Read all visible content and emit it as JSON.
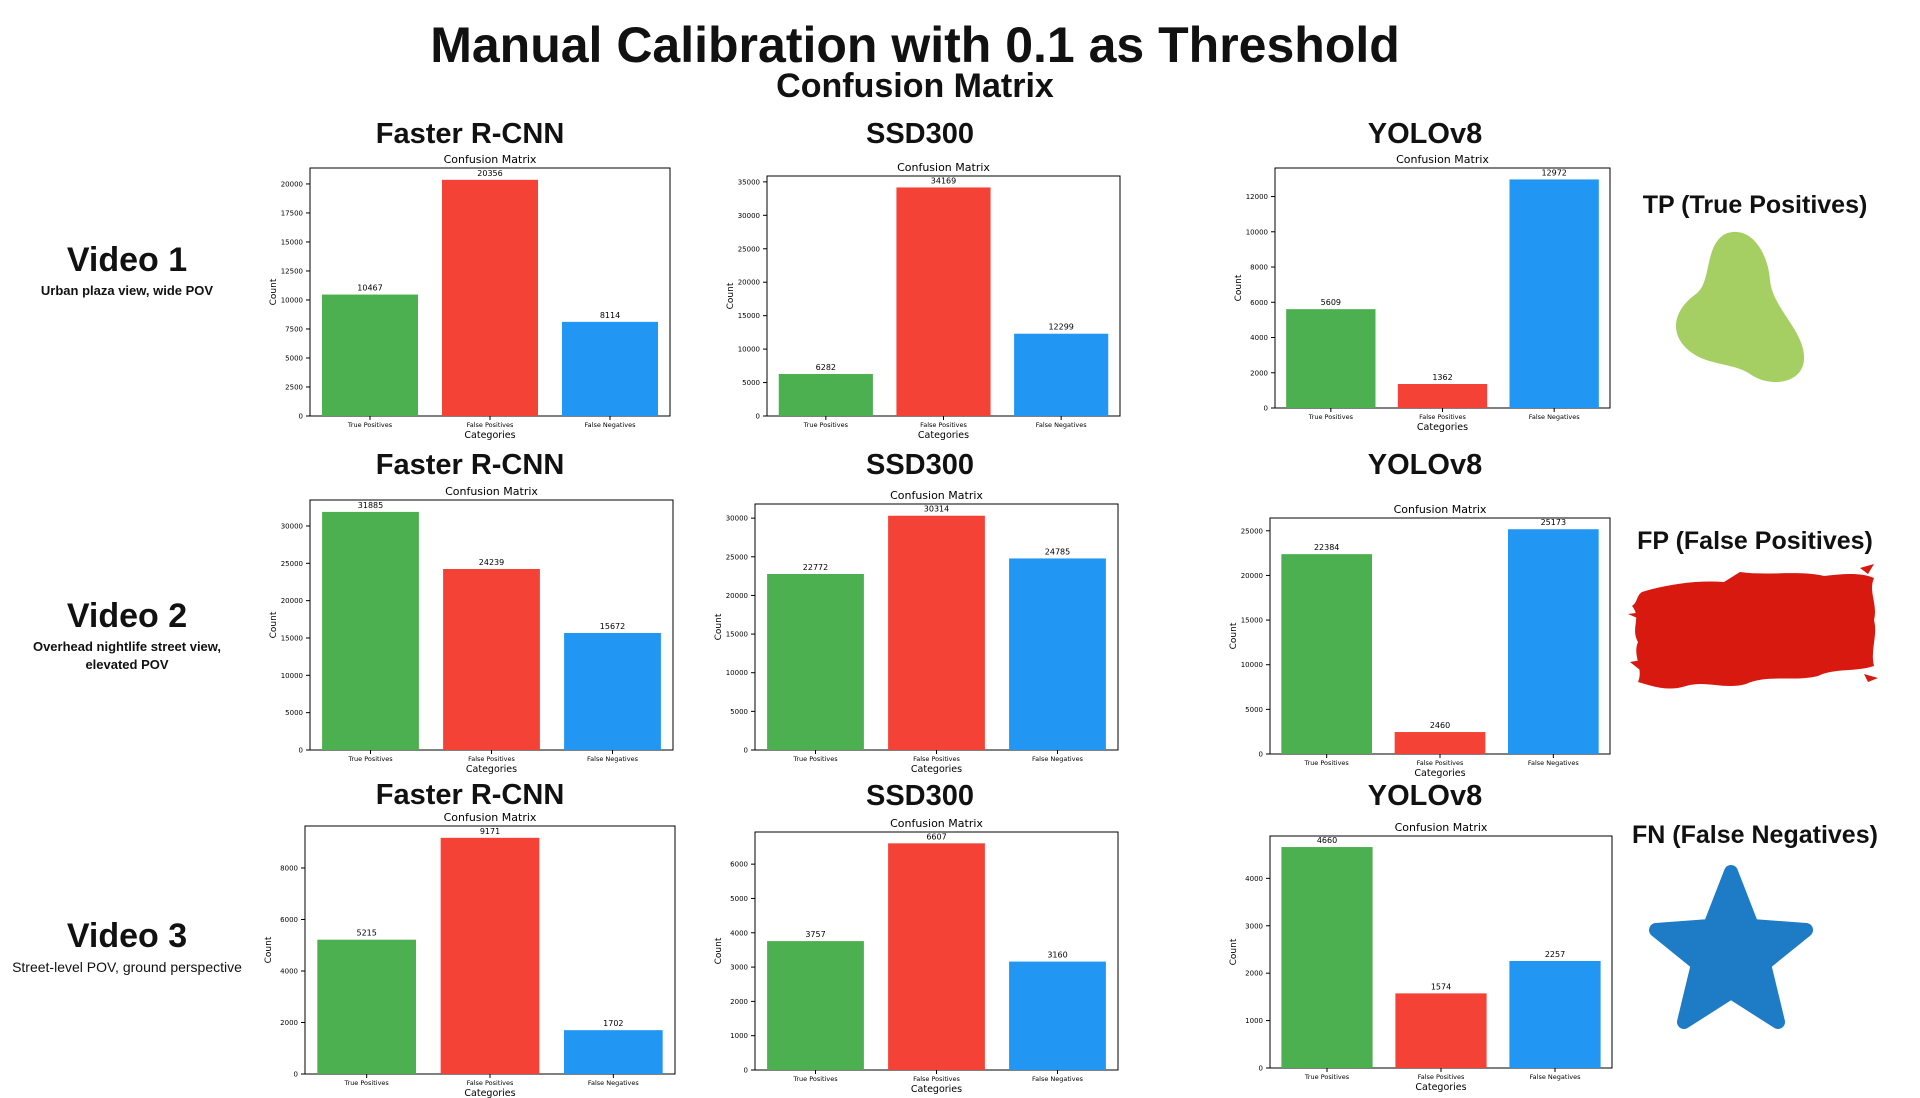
{
  "title": "Manual Calibration with 0.1 as Threshold",
  "subtitle": "Confusion Matrix",
  "colors": {
    "true_positives": "#4CAF50",
    "false_positives": "#F44336",
    "false_negatives": "#2196F3",
    "fp_swatch": "#D7190F",
    "tp_swatch": "#A5CF63",
    "fn_swatch": "#1E7BC6"
  },
  "rows": [
    {
      "title": "Video 1",
      "description": "Urban plaza view, wide  POV"
    },
    {
      "title": "Video 2",
      "description": "Overhead nightlife street view, elevated POV"
    },
    {
      "title": "Video 3",
      "description": "Street-level POV, ground perspective"
    }
  ],
  "models": [
    {
      "title": "Faster R-CNN"
    },
    {
      "title": "SSD300"
    },
    {
      "title": "YOLOv8"
    }
  ],
  "legend": [
    {
      "label": "TP (True Positives)",
      "icon": "green-blob-icon"
    },
    {
      "label": "FP (False Positives)",
      "icon": "red-brush-stroke-icon"
    },
    {
      "label": "FN (False Negatives)",
      "icon": "blue-star-icon"
    }
  ],
  "chart_data": [
    {
      "type": "bar",
      "video": "Video 1",
      "model": "Faster R-CNN",
      "title": "Confusion Matrix",
      "xlabel": "Categories",
      "ylabel": "Count",
      "categories": [
        "True Positives",
        "False Positives",
        "False Negatives"
      ],
      "values": [
        10467,
        20356,
        8114
      ],
      "ylim": [
        0,
        21374
      ],
      "yticks": [
        0,
        2500,
        5000,
        7500,
        10000,
        12500,
        15000,
        17500,
        20000
      ],
      "grid": false
    },
    {
      "type": "bar",
      "video": "Video 1",
      "model": "SSD300",
      "title": "Confusion Matrix",
      "xlabel": "Categories",
      "ylabel": "Count",
      "categories": [
        "True Positives",
        "False Positives",
        "False Negatives"
      ],
      "values": [
        6282,
        34169,
        12299
      ],
      "ylim": [
        0,
        35877
      ],
      "yticks": [
        0,
        5000,
        10000,
        15000,
        20000,
        25000,
        30000,
        35000
      ],
      "grid": false
    },
    {
      "type": "bar",
      "video": "Video 1",
      "model": "YOLOv8",
      "title": "Confusion Matrix",
      "xlabel": "Categories",
      "ylabel": "Count",
      "categories": [
        "True Positives",
        "False Positives",
        "False Negatives"
      ],
      "values": [
        5609,
        1362,
        12972
      ],
      "ylim": [
        0,
        13620
      ],
      "yticks": [
        0,
        2000,
        4000,
        6000,
        8000,
        10000,
        12000
      ],
      "grid": false
    },
    {
      "type": "bar",
      "video": "Video 2",
      "model": "Faster R-CNN",
      "title": "Confusion Matrix",
      "xlabel": "Categories",
      "ylabel": "Count",
      "categories": [
        "True Positives",
        "False Positives",
        "False Negatives"
      ],
      "values": [
        31885,
        24239,
        15672
      ],
      "ylim": [
        0,
        33479
      ],
      "yticks": [
        0,
        5000,
        10000,
        15000,
        20000,
        25000,
        30000
      ],
      "grid": false
    },
    {
      "type": "bar",
      "video": "Video 2",
      "model": "SSD300",
      "title": "Confusion Matrix",
      "xlabel": "Categories",
      "ylabel": "Count",
      "categories": [
        "True Positives",
        "False Positives",
        "False Negatives"
      ],
      "values": [
        22772,
        30314,
        24785
      ],
      "ylim": [
        0,
        31830
      ],
      "yticks": [
        0,
        5000,
        10000,
        15000,
        20000,
        25000,
        30000
      ],
      "grid": false
    },
    {
      "type": "bar",
      "video": "Video 2",
      "model": "YOLOv8",
      "title": "Confusion Matrix",
      "xlabel": "Categories",
      "ylabel": "Count",
      "categories": [
        "True Positives",
        "False Positives",
        "False Negatives"
      ],
      "values": [
        22384,
        2460,
        25173
      ],
      "ylim": [
        0,
        26432
      ],
      "yticks": [
        0,
        5000,
        10000,
        15000,
        20000,
        25000
      ],
      "grid": false
    },
    {
      "type": "bar",
      "video": "Video 3",
      "model": "Faster R-CNN",
      "title": "Confusion Matrix",
      "xlabel": "Categories",
      "ylabel": "Count",
      "categories": [
        "True Positives",
        "False Positives",
        "False Negatives"
      ],
      "values": [
        5215,
        9171,
        1702
      ],
      "ylim": [
        0,
        9630
      ],
      "yticks": [
        0,
        2000,
        4000,
        6000,
        8000
      ],
      "grid": false
    },
    {
      "type": "bar",
      "video": "Video 3",
      "model": "SSD300",
      "title": "Confusion Matrix",
      "xlabel": "Categories",
      "ylabel": "Count",
      "categories": [
        "True Positives",
        "False Positives",
        "False Negatives"
      ],
      "values": [
        3757,
        6607,
        3160
      ],
      "ylim": [
        0,
        6937
      ],
      "yticks": [
        0,
        1000,
        2000,
        3000,
        4000,
        5000,
        6000
      ],
      "grid": false
    },
    {
      "type": "bar",
      "video": "Video 3",
      "model": "YOLOv8",
      "title": "Confusion Matrix",
      "xlabel": "Categories",
      "ylabel": "Count",
      "categories": [
        "True Positives",
        "False Positives",
        "False Negatives"
      ],
      "values": [
        4660,
        1574,
        2257
      ],
      "ylim": [
        0,
        4893
      ],
      "yticks": [
        0,
        1000,
        2000,
        3000,
        4000
      ],
      "grid": false
    }
  ]
}
